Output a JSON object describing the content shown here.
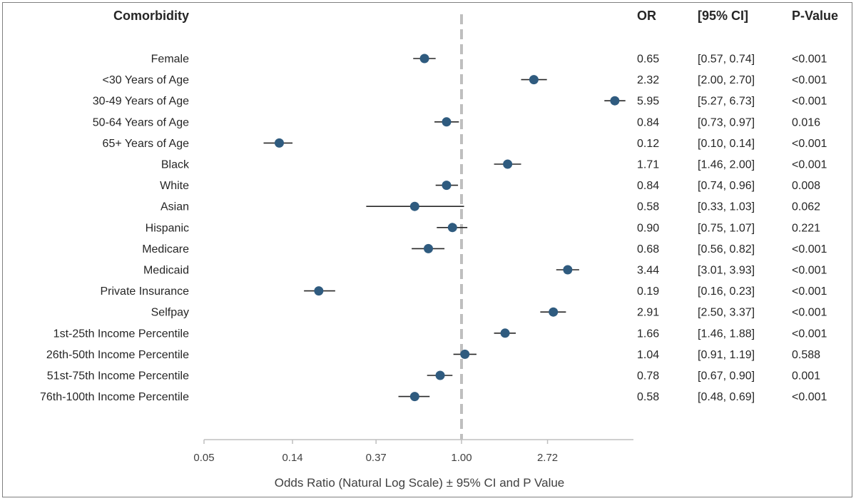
{
  "headers": {
    "comorbidity": "Comorbidity",
    "or": "OR",
    "ci": "[95% CI]",
    "p": "P-Value"
  },
  "chart_data": {
    "type": "scatter",
    "subtype": "forest-plot",
    "xlabel": "Odds Ratio (Natural Log Scale) ± 95% CI and P Value",
    "x_scale": "log",
    "xlim": [
      0.05,
      7.39
    ],
    "x_ticks": [
      0.05,
      0.14,
      0.37,
      1.0,
      2.72
    ],
    "x_tick_labels": [
      "0.05",
      "0.14",
      "0.37",
      "1.00",
      "2.72"
    ],
    "reference_line": 1.0,
    "marker_color": "#2f5b7f",
    "rows": [
      {
        "label": "Female",
        "or": 0.65,
        "lo": 0.57,
        "hi": 0.74,
        "or_text": "0.65",
        "ci_text": "[0.57, 0.74]",
        "p_text": "<0.001"
      },
      {
        "label": "<30 Years of Age",
        "or": 2.32,
        "lo": 2.0,
        "hi": 2.7,
        "or_text": "2.32",
        "ci_text": "[2.00, 2.70]",
        "p_text": "<0.001"
      },
      {
        "label": "30-49 Years of Age",
        "or": 5.95,
        "lo": 5.27,
        "hi": 6.73,
        "or_text": "5.95",
        "ci_text": "[5.27, 6.73]",
        "p_text": "<0.001"
      },
      {
        "label": "50-64 Years of Age",
        "or": 0.84,
        "lo": 0.73,
        "hi": 0.97,
        "or_text": "0.84",
        "ci_text": "[0.73, 0.97]",
        "p_text": "0.016"
      },
      {
        "label": "65+ Years of Age",
        "or": 0.12,
        "lo": 0.1,
        "hi": 0.14,
        "or_text": "0.12",
        "ci_text": "[0.10, 0.14]",
        "p_text": "<0.001"
      },
      {
        "label": "Black",
        "or": 1.71,
        "lo": 1.46,
        "hi": 2.0,
        "or_text": "1.71",
        "ci_text": "[1.46, 2.00]",
        "p_text": "<0.001"
      },
      {
        "label": "White",
        "or": 0.84,
        "lo": 0.74,
        "hi": 0.96,
        "or_text": "0.84",
        "ci_text": "[0.74, 0.96]",
        "p_text": "0.008"
      },
      {
        "label": "Asian",
        "or": 0.58,
        "lo": 0.33,
        "hi": 1.03,
        "or_text": "0.58",
        "ci_text": "[0.33, 1.03]",
        "p_text": "0.062"
      },
      {
        "label": "Hispanic",
        "or": 0.9,
        "lo": 0.75,
        "hi": 1.07,
        "or_text": "0.90",
        "ci_text": "[0.75, 1.07]",
        "p_text": "0.221"
      },
      {
        "label": "Medicare",
        "or": 0.68,
        "lo": 0.56,
        "hi": 0.82,
        "or_text": "0.68",
        "ci_text": "[0.56, 0.82]",
        "p_text": "<0.001"
      },
      {
        "label": "Medicaid",
        "or": 3.44,
        "lo": 3.01,
        "hi": 3.93,
        "or_text": "3.44",
        "ci_text": "[3.01, 3.93]",
        "p_text": "<0.001"
      },
      {
        "label": "Private Insurance",
        "or": 0.19,
        "lo": 0.16,
        "hi": 0.23,
        "or_text": "0.19",
        "ci_text": "[0.16, 0.23]",
        "p_text": "<0.001"
      },
      {
        "label": "Selfpay",
        "or": 2.91,
        "lo": 2.5,
        "hi": 3.37,
        "or_text": "2.91",
        "ci_text": "[2.50, 3.37]",
        "p_text": "<0.001"
      },
      {
        "label": "1st-25th Income Percentile",
        "or": 1.66,
        "lo": 1.46,
        "hi": 1.88,
        "or_text": "1.66",
        "ci_text": "[1.46, 1.88]",
        "p_text": "<0.001"
      },
      {
        "label": "26th-50th Income Percentile",
        "or": 1.04,
        "lo": 0.91,
        "hi": 1.19,
        "or_text": "1.04",
        "ci_text": "[0.91, 1.19]",
        "p_text": "0.588"
      },
      {
        "label": "51st-75th Income Percentile",
        "or": 0.78,
        "lo": 0.67,
        "hi": 0.9,
        "or_text": "0.78",
        "ci_text": "[0.67, 0.90]",
        "p_text": "0.001"
      },
      {
        "label": "76th-100th Income Percentile",
        "or": 0.58,
        "lo": 0.48,
        "hi": 0.69,
        "or_text": "0.58",
        "ci_text": "[0.48, 0.69]",
        "p_text": "<0.001"
      }
    ]
  }
}
